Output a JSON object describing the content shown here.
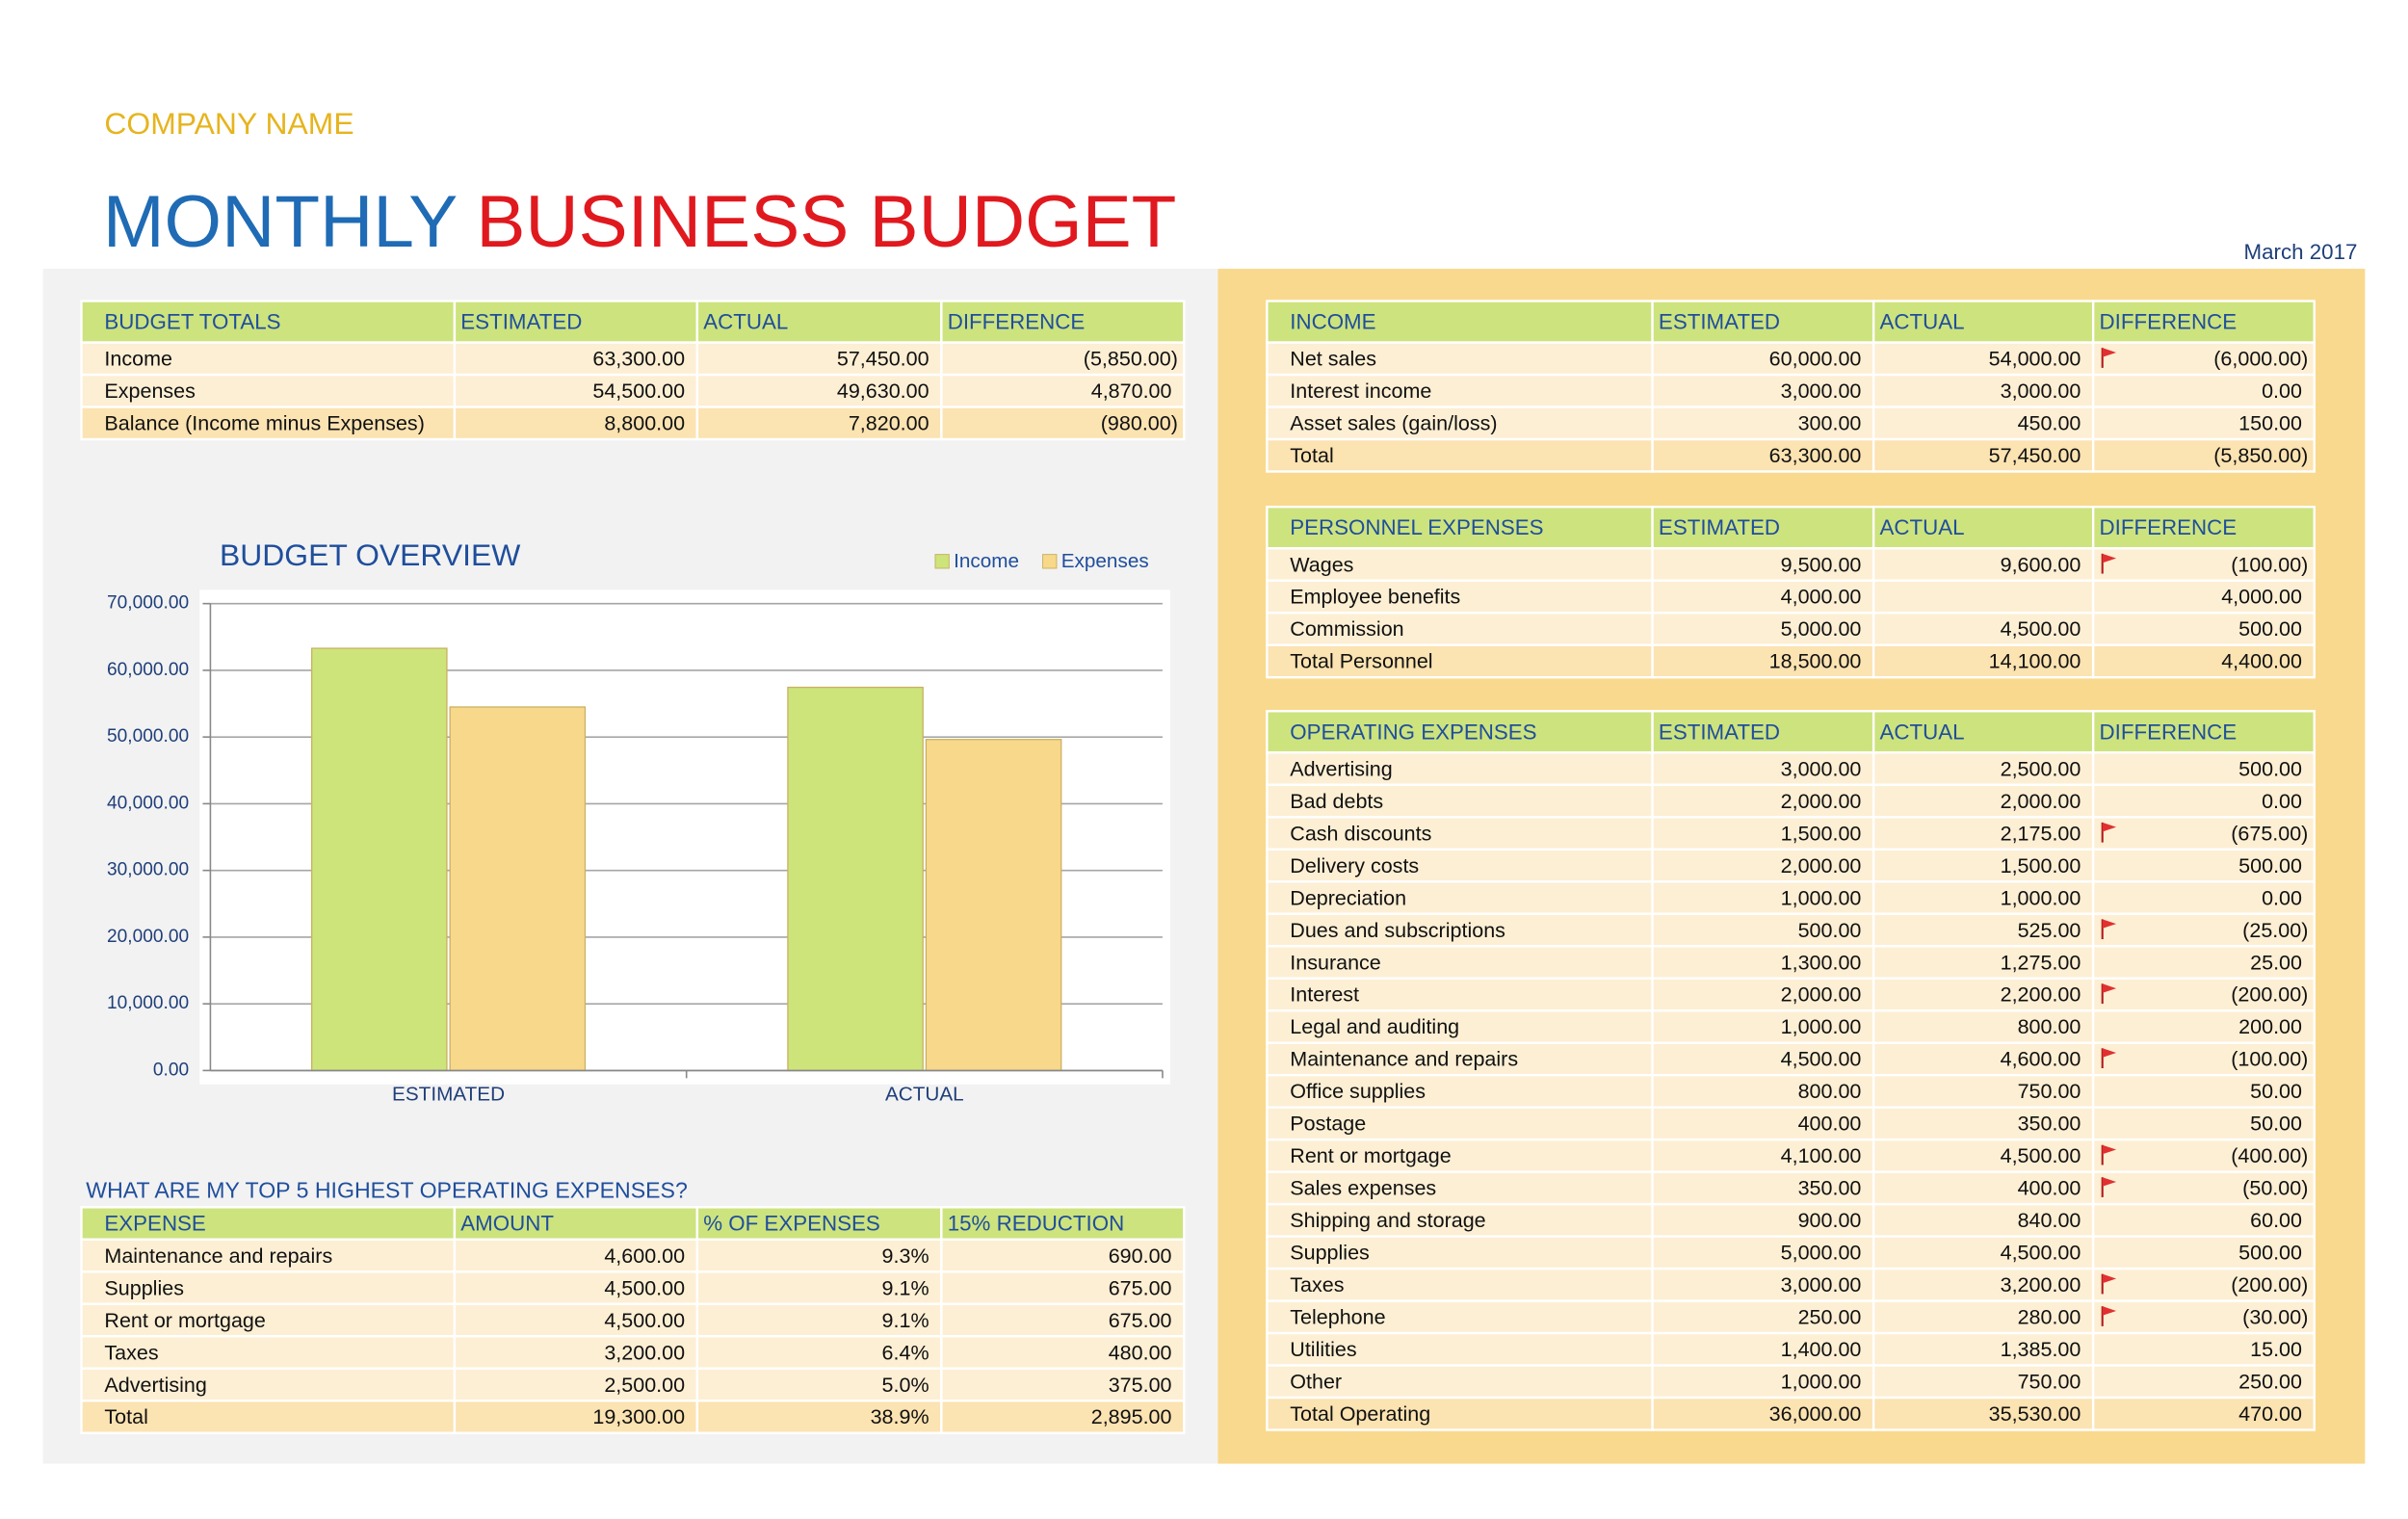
{
  "company": "COMPANY NAME",
  "title": {
    "part1": "MONTHLY",
    "part2": "BUSINESS BUDGET"
  },
  "date": "March 2017",
  "budget_totals": {
    "header": [
      "BUDGET TOTALS",
      "ESTIMATED",
      "ACTUAL",
      "DIFFERENCE"
    ],
    "rows": [
      [
        "Income",
        "63,300.00",
        "57,450.00",
        "(5,850.00)"
      ],
      [
        "Expenses",
        "54,500.00",
        "49,630.00",
        "4,870.00"
      ],
      [
        "Balance (Income minus Expenses)",
        "8,800.00",
        "7,820.00",
        "(980.00)"
      ]
    ]
  },
  "chart_data": {
    "type": "bar",
    "title": "BUDGET OVERVIEW",
    "categories": [
      "ESTIMATED",
      "ACTUAL"
    ],
    "series": [
      {
        "name": "Income",
        "color": "#cde47a",
        "values": [
          63300,
          57450
        ]
      },
      {
        "name": "Expenses",
        "color": "#f8d88a",
        "values": [
          54500,
          49630
        ]
      }
    ],
    "ylim": [
      0,
      70000
    ],
    "yticks": [
      {
        "value": 0,
        "label": "0.00"
      },
      {
        "value": 10000,
        "label": "10,000.00"
      },
      {
        "value": 20000,
        "label": "20,000.00"
      },
      {
        "value": 30000,
        "label": "30,000.00"
      },
      {
        "value": 40000,
        "label": "40,000.00"
      },
      {
        "value": 50000,
        "label": "50,000.00"
      },
      {
        "value": 60000,
        "label": "60,000.00"
      },
      {
        "value": 70000,
        "label": "70,000.00"
      }
    ],
    "grid": true
  },
  "top_expenses": {
    "title": "WHAT ARE MY TOP 5 HIGHEST OPERATING EXPENSES?",
    "header": [
      "EXPENSE",
      "AMOUNT",
      "% OF EXPENSES",
      "15% REDUCTION"
    ],
    "rows": [
      [
        "Maintenance and repairs",
        "4,600.00",
        "9.3%",
        "690.00"
      ],
      [
        "Supplies",
        "4,500.00",
        "9.1%",
        "675.00"
      ],
      [
        "Rent or mortgage",
        "4,500.00",
        "9.1%",
        "675.00"
      ],
      [
        "Taxes",
        "3,200.00",
        "6.4%",
        "480.00"
      ],
      [
        "Advertising",
        "2,500.00",
        "5.0%",
        "375.00"
      ],
      [
        "Total",
        "19,300.00",
        "38.9%",
        "2,895.00"
      ]
    ]
  },
  "income": {
    "header": [
      "INCOME",
      "ESTIMATED",
      "ACTUAL",
      "DIFFERENCE"
    ],
    "rows": [
      [
        "Net sales",
        "60,000.00",
        "54,000.00",
        "(6,000.00)"
      ],
      [
        "Interest income",
        "3,000.00",
        "3,000.00",
        "0.00"
      ],
      [
        "Asset sales (gain/loss)",
        "300.00",
        "450.00",
        "150.00"
      ],
      [
        "Total",
        "63,300.00",
        "57,450.00",
        "(5,850.00)"
      ]
    ]
  },
  "personnel_expenses": {
    "header": [
      "PERSONNEL EXPENSES",
      "ESTIMATED",
      "ACTUAL",
      "DIFFERENCE"
    ],
    "rows": [
      [
        "Wages",
        "9,500.00",
        "9,600.00",
        "(100.00)"
      ],
      [
        "Employee benefits",
        "4,000.00",
        null,
        "4,000.00"
      ],
      [
        "Commission",
        "5,000.00",
        "4,500.00",
        "500.00"
      ],
      [
        "Total Personnel",
        "18,500.00",
        "14,100.00",
        "4,400.00"
      ]
    ]
  },
  "operating_expenses": {
    "header": [
      "OPERATING EXPENSES",
      "ESTIMATED",
      "ACTUAL",
      "DIFFERENCE"
    ],
    "rows": [
      [
        "Advertising",
        "3,000.00",
        "2,500.00",
        "500.00"
      ],
      [
        "Bad debts",
        "2,000.00",
        "2,000.00",
        "0.00"
      ],
      [
        "Cash discounts",
        "1,500.00",
        "2,175.00",
        "(675.00)"
      ],
      [
        "Delivery costs",
        "2,000.00",
        "1,500.00",
        "500.00"
      ],
      [
        "Depreciation",
        "1,000.00",
        "1,000.00",
        "0.00"
      ],
      [
        "Dues and subscriptions",
        "500.00",
        "525.00",
        "(25.00)"
      ],
      [
        "Insurance",
        "1,300.00",
        "1,275.00",
        "25.00"
      ],
      [
        "Interest",
        "2,000.00",
        "2,200.00",
        "(200.00)"
      ],
      [
        "Legal and auditing",
        "1,000.00",
        "800.00",
        "200.00"
      ],
      [
        "Maintenance and repairs",
        "4,500.00",
        "4,600.00",
        "(100.00)"
      ],
      [
        "Office supplies",
        "800.00",
        "750.00",
        "50.00"
      ],
      [
        "Postage",
        "400.00",
        "350.00",
        "50.00"
      ],
      [
        "Rent or mortgage",
        "4,100.00",
        "4,500.00",
        "(400.00)"
      ],
      [
        "Sales expenses",
        "350.00",
        "400.00",
        "(50.00)"
      ],
      [
        "Shipping and storage",
        "900.00",
        "840.00",
        "60.00"
      ],
      [
        "Supplies",
        "5,000.00",
        "4,500.00",
        "500.00"
      ],
      [
        "Taxes",
        "3,000.00",
        "3,200.00",
        "(200.00)"
      ],
      [
        "Telephone",
        "250.00",
        "280.00",
        "(30.00)"
      ],
      [
        "Utilities",
        "1,400.00",
        "1,385.00",
        "15.00"
      ],
      [
        "Other",
        "1,000.00",
        "750.00",
        "250.00"
      ],
      [
        "Total Operating",
        "36,000.00",
        "35,530.00",
        "470.00"
      ]
    ]
  }
}
